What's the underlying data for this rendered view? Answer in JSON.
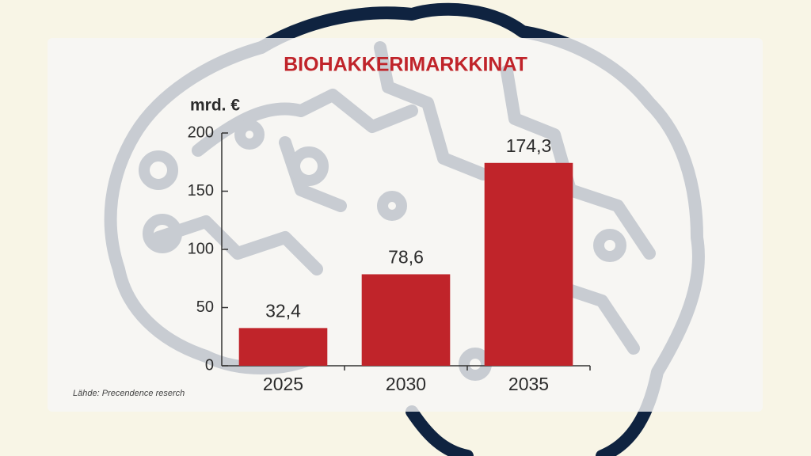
{
  "chart_data": {
    "type": "bar",
    "title": "BIOHAKKERIMARKKINAT",
    "y_label": "mrd. €",
    "source": "Lähde: Precendence reserch",
    "categories": [
      "2025",
      "2030",
      "2035"
    ],
    "values": [
      32.4,
      78.6,
      174.3
    ],
    "value_labels": [
      "32,4",
      "78,6",
      "174,3"
    ],
    "color": "#c0242a",
    "ylim": [
      0,
      200
    ],
    "yticks": [
      0,
      50,
      100,
      150,
      200
    ]
  }
}
